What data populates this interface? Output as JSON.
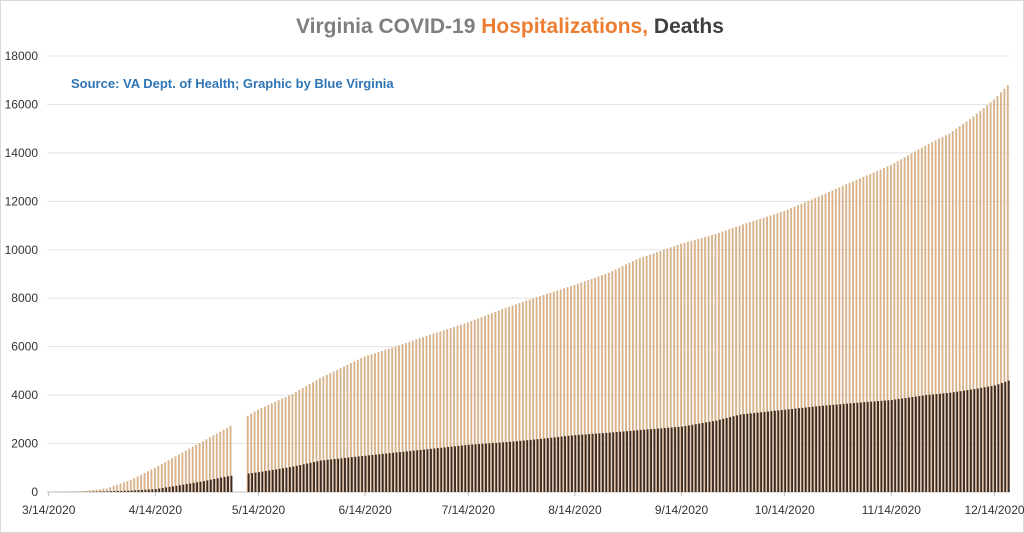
{
  "chart_data": {
    "type": "bar",
    "title_parts": [
      {
        "text": "Virginia COVID-19 ",
        "color": "#7f7f7f"
      },
      {
        "text": "Hospitalizations,",
        "color": "#ed7d31"
      },
      {
        "text": " Deaths",
        "color": "#404040"
      }
    ],
    "annotation": "Source: VA Dept. of Health; Graphic by Blue Virginia",
    "annotation_color": "#2e75b6",
    "x_start_date": "3/14/2020",
    "x_end_date": "12/18/2020",
    "x_tick_labels": [
      "3/14/2020",
      "4/14/2020",
      "5/14/2020",
      "6/14/2020",
      "7/14/2020",
      "8/14/2020",
      "9/14/2020",
      "10/14/2020",
      "11/14/2020",
      "12/14/2020"
    ],
    "ylim": [
      0,
      18000
    ],
    "y_ticks": [
      0,
      2000,
      4000,
      6000,
      8000,
      10000,
      12000,
      14000,
      16000,
      18000
    ],
    "grid": true,
    "series": [
      {
        "color": "#d9b38c",
        "points": [
          [
            "3/14/2020",
            0
          ],
          [
            "3/24/2020",
            30
          ],
          [
            "3/31/2020",
            150
          ],
          [
            "4/7/2020",
            500
          ],
          [
            "4/14/2020",
            1000
          ],
          [
            "4/21/2020",
            1550
          ],
          [
            "4/28/2020",
            2100
          ],
          [
            "5/5/2020",
            2650
          ],
          [
            "5/14/2020",
            3400
          ],
          [
            "5/24/2020",
            4050
          ],
          [
            "6/1/2020",
            4700
          ],
          [
            "6/14/2020",
            5600
          ],
          [
            "6/24/2020",
            6050
          ],
          [
            "7/1/2020",
            6400
          ],
          [
            "7/14/2020",
            7000
          ],
          [
            "7/24/2020",
            7550
          ],
          [
            "8/1/2020",
            7950
          ],
          [
            "8/14/2020",
            8550
          ],
          [
            "8/24/2020",
            9050
          ],
          [
            "9/1/2020",
            9600
          ],
          [
            "9/14/2020",
            10250
          ],
          [
            "9/24/2020",
            10650
          ],
          [
            "10/1/2020",
            11000
          ],
          [
            "10/14/2020",
            11600
          ],
          [
            "10/24/2020",
            12200
          ],
          [
            "11/1/2020",
            12700
          ],
          [
            "11/14/2020",
            13500
          ],
          [
            "11/24/2020",
            14300
          ],
          [
            "12/1/2020",
            14800
          ],
          [
            "12/8/2020",
            15500
          ],
          [
            "12/14/2020",
            16200
          ],
          [
            "12/18/2020",
            16800
          ]
        ],
        "gaps": [
          [
            "5/7/2020",
            "5/10/2020"
          ]
        ]
      },
      {
        "color": "#3b2a22",
        "points": [
          [
            "3/14/2020",
            0
          ],
          [
            "3/24/2020",
            10
          ],
          [
            "3/31/2020",
            30
          ],
          [
            "4/7/2020",
            60
          ],
          [
            "4/14/2020",
            120
          ],
          [
            "4/21/2020",
            280
          ],
          [
            "4/28/2020",
            450
          ],
          [
            "5/5/2020",
            650
          ],
          [
            "5/14/2020",
            820
          ],
          [
            "5/24/2020",
            1050
          ],
          [
            "6/1/2020",
            1300
          ],
          [
            "6/14/2020",
            1500
          ],
          [
            "6/24/2020",
            1650
          ],
          [
            "7/1/2020",
            1750
          ],
          [
            "7/14/2020",
            1950
          ],
          [
            "7/24/2020",
            2050
          ],
          [
            "8/1/2020",
            2150
          ],
          [
            "8/14/2020",
            2350
          ],
          [
            "8/24/2020",
            2450
          ],
          [
            "9/1/2020",
            2550
          ],
          [
            "9/14/2020",
            2700
          ],
          [
            "9/24/2020",
            2950
          ],
          [
            "10/1/2020",
            3200
          ],
          [
            "10/14/2020",
            3400
          ],
          [
            "10/24/2020",
            3550
          ],
          [
            "11/1/2020",
            3650
          ],
          [
            "11/14/2020",
            3800
          ],
          [
            "11/24/2020",
            4000
          ],
          [
            "12/1/2020",
            4100
          ],
          [
            "12/8/2020",
            4250
          ],
          [
            "12/14/2020",
            4400
          ],
          [
            "12/18/2020",
            4600
          ]
        ],
        "gaps": [
          [
            "5/7/2020",
            "5/10/2020"
          ]
        ]
      }
    ]
  }
}
